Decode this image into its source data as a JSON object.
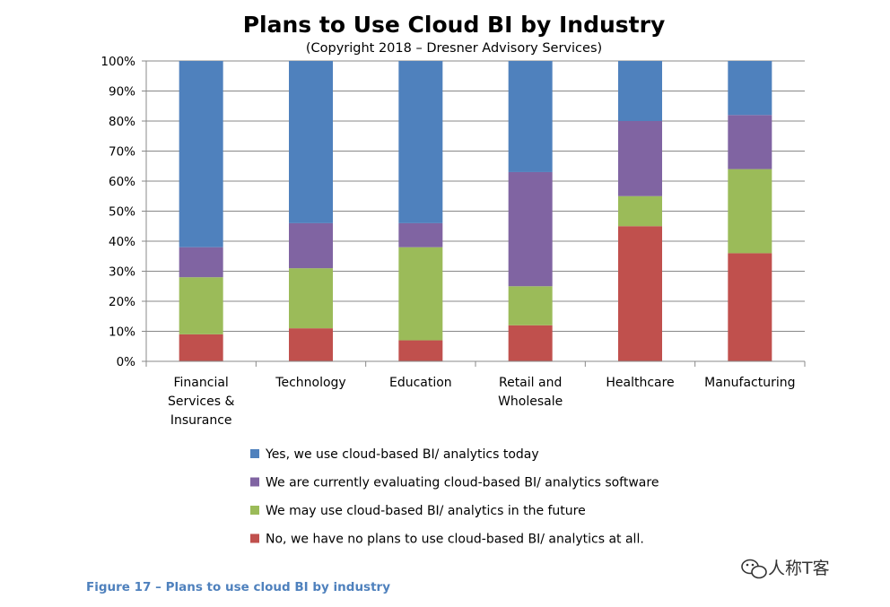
{
  "chart_data": {
    "type": "bar",
    "stacked": true,
    "title": "Plans to Use Cloud BI by Industry",
    "subtitle": "(Copyright 2018 – Dresner Advisory Services)",
    "categories": [
      [
        "Financial",
        "Services &",
        "Insurance"
      ],
      [
        "Technology"
      ],
      [
        "Education"
      ],
      [
        "Retail and",
        "Wholesale"
      ],
      [
        "Healthcare"
      ],
      [
        "Manufacturing"
      ]
    ],
    "ylim": [
      0,
      100
    ],
    "yticks": [
      "0%",
      "10%",
      "20%",
      "30%",
      "40%",
      "50%",
      "60%",
      "70%",
      "80%",
      "90%",
      "100%"
    ],
    "grid": true,
    "legend_position": "bottom",
    "series": [
      {
        "name": "No, we have no plans to use cloud-based BI/ analytics at all.",
        "color": "#c0504d",
        "values": [
          9,
          11,
          7,
          12,
          45,
          36
        ]
      },
      {
        "name": "We may use cloud-based BI/ analytics in the future",
        "color": "#9bbb59",
        "values": [
          19,
          20,
          31,
          13,
          10,
          28
        ]
      },
      {
        "name": "We are currently evaluating cloud-based BI/ analytics software",
        "color": "#8064a2",
        "values": [
          10,
          15,
          8,
          38,
          25,
          18
        ]
      },
      {
        "name": "Yes, we use cloud-based BI/ analytics  today",
        "color": "#4f81bd",
        "values": [
          62,
          54,
          54,
          37,
          20,
          18
        ]
      }
    ]
  },
  "caption": "Figure 17 – Plans to use cloud BI by industry",
  "watermark": {
    "text": "人称T客",
    "icon": "wechat-icon"
  }
}
